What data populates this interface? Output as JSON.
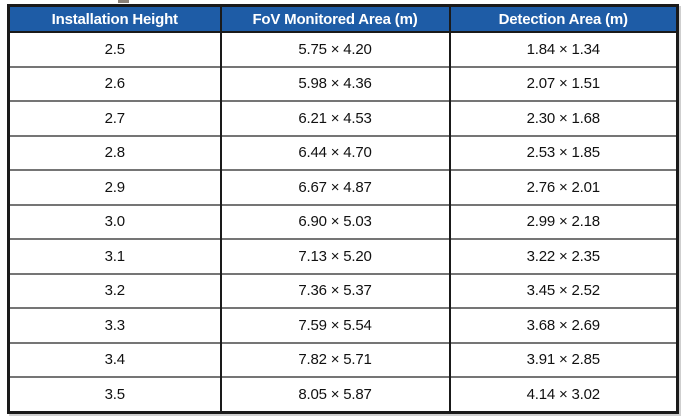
{
  "table": {
    "header_bg": "#1e5ca6",
    "header_text_color": "#ffffff",
    "columns": [
      "Installation Height",
      "FoV Monitored Area (m)",
      "Detection Area (m)"
    ],
    "rows": [
      [
        "2.5",
        "5.75 × 4.20",
        "1.84 × 1.34"
      ],
      [
        "2.6",
        "5.98 × 4.36",
        "2.07 × 1.51"
      ],
      [
        "2.7",
        "6.21 × 4.53",
        "2.30 × 1.68"
      ],
      [
        "2.8",
        "6.44 × 4.70",
        "2.53 × 1.85"
      ],
      [
        "2.9",
        "6.67 × 4.87",
        "2.76 × 2.01"
      ],
      [
        "3.0",
        "6.90 × 5.03",
        "2.99 × 2.18"
      ],
      [
        "3.1",
        "7.13 × 5.20",
        "3.22 × 2.35"
      ],
      [
        "3.2",
        "7.36 × 5.37",
        "3.45 × 2.52"
      ],
      [
        "3.3",
        "7.59 × 5.54",
        "3.68 × 2.69"
      ],
      [
        "3.4",
        "7.82 × 5.71",
        "3.91 × 2.85"
      ],
      [
        "3.5",
        "8.05 × 5.87",
        "4.14 × 3.02"
      ]
    ]
  },
  "chart_data": {
    "type": "table",
    "title": "",
    "columns": [
      "Installation Height",
      "FoV Monitored Area (m)",
      "Detection Area (m)"
    ],
    "installation_height": [
      2.5,
      2.6,
      2.7,
      2.8,
      2.9,
      3.0,
      3.1,
      3.2,
      3.3,
      3.4,
      3.5
    ],
    "fov_monitored_area_m": [
      "5.75 × 4.20",
      "5.98 × 4.36",
      "6.21 × 4.53",
      "6.44 × 4.70",
      "6.67 × 4.87",
      "6.90 × 5.03",
      "7.13 × 5.20",
      "7.36 × 5.37",
      "7.59 × 5.54",
      "7.82 × 5.71",
      "8.05 × 5.87"
    ],
    "detection_area_m": [
      "1.84 × 1.34",
      "2.07 × 1.51",
      "2.30 × 1.68",
      "2.53 × 1.85",
      "2.76 × 2.01",
      "2.99 × 2.18",
      "3.22 × 2.35",
      "3.45 × 2.52",
      "3.68 × 2.69",
      "3.91 × 2.85",
      "4.14 × 3.02"
    ]
  }
}
